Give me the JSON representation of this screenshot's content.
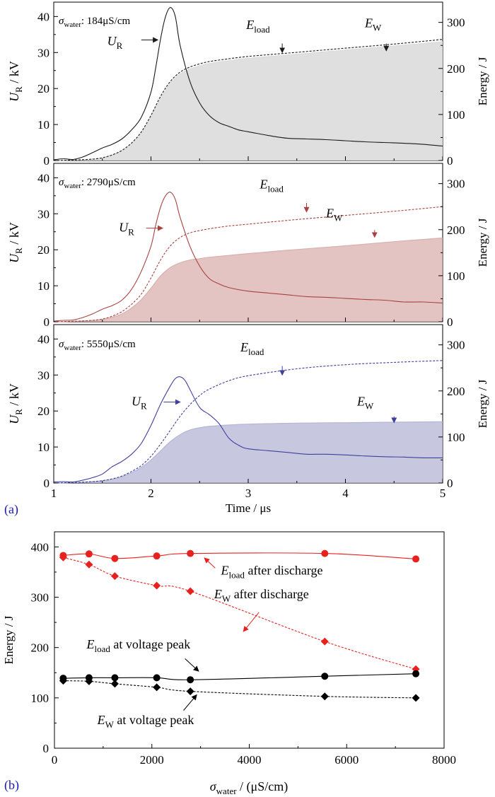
{
  "figure": {
    "panel_a_label": "(a)",
    "panel_b_label": "(b)"
  },
  "chart_data": [
    {
      "id": "a1",
      "type": "line",
      "annotation": {
        "sigma_label": "σ",
        "sigma_sub": "water",
        "sigma_value": ": 184μS/cm"
      },
      "ylabel_left": {
        "main": "U",
        "sub": "R",
        "rest": " / kV"
      },
      "ylabel_right": "Energy / J",
      "xlim": [
        1,
        5
      ],
      "ylim_left": [
        0,
        44
      ],
      "ylim_right": [
        0,
        344
      ],
      "yticks_left": [
        0,
        10,
        20,
        30,
        40
      ],
      "yticks_right": [
        0,
        100,
        200,
        300
      ],
      "colors": {
        "line": "#1a1a1a",
        "fill": "#dcdcdc",
        "fill_opacity": 0.9
      },
      "series": [
        {
          "name": "U_R",
          "axis": "left",
          "style": "solid",
          "x": [
            1.0,
            1.1,
            1.2,
            1.3,
            1.4,
            1.5,
            1.6,
            1.7,
            1.8,
            1.9,
            2.0,
            2.05,
            2.1,
            2.15,
            2.2,
            2.25,
            2.3,
            2.4,
            2.5,
            2.6,
            2.7,
            2.8,
            2.9,
            3.0,
            3.2,
            3.4,
            3.6,
            3.8,
            4.0,
            4.2,
            4.4,
            4.6,
            4.8,
            5.0
          ],
          "values": [
            0.2,
            0.5,
            0.3,
            1.0,
            2.2,
            3.5,
            4.5,
            6.0,
            8.5,
            12,
            19,
            26,
            34,
            40,
            42.5,
            40,
            32,
            22,
            16,
            12.5,
            10.5,
            9.5,
            8.5,
            8.0,
            7.0,
            6.2,
            6.0,
            5.8,
            5.5,
            5.2,
            5.0,
            4.8,
            4.5,
            4.0
          ]
        },
        {
          "name": "E_load",
          "axis": "right",
          "style": "dashed",
          "x": [
            1.0,
            1.2,
            1.4,
            1.5,
            1.6,
            1.7,
            1.8,
            1.9,
            2.0,
            2.1,
            2.2,
            2.3,
            2.4,
            2.5,
            2.6,
            2.8,
            3.0,
            3.5,
            4.0,
            4.5,
            5.0
          ],
          "values": [
            0,
            1,
            3,
            6,
            12,
            22,
            38,
            62,
            98,
            140,
            172,
            192,
            203,
            210,
            215,
            221,
            226,
            235,
            244,
            253,
            263
          ]
        },
        {
          "name": "E_W",
          "axis": "right",
          "style": "fill",
          "x": [
            1.0,
            1.2,
            1.4,
            1.5,
            1.6,
            1.7,
            1.8,
            1.9,
            2.0,
            2.1,
            2.2,
            2.3,
            2.4,
            2.5,
            2.6,
            2.8,
            3.0,
            3.5,
            4.0,
            4.5,
            5.0
          ],
          "values": [
            0,
            1,
            3,
            6,
            12,
            21,
            36,
            60,
            95,
            136,
            168,
            188,
            199,
            206,
            211,
            217,
            222,
            231,
            240,
            249,
            258
          ]
        }
      ],
      "labels": [
        {
          "main": "U",
          "sub": "R",
          "tx": 1.55,
          "ty": 32,
          "ax0": 1.9,
          "ay0": 33.5,
          "ax1": 2.07,
          "ay1": 33.5,
          "color": "#1a1a1a"
        },
        {
          "main": "E",
          "sub": "load",
          "tx": 2.98,
          "ty": 36.5,
          "ax0": 3.35,
          "ay0": 32.5,
          "ax1": 3.35,
          "ay1": 30,
          "color": "#1a1a1a"
        },
        {
          "main": "E",
          "sub": "W",
          "tx": 4.2,
          "ty": 37,
          "ax0": 4.42,
          "ay0": 32.5,
          "ax1": 4.42,
          "ay1": 30.5,
          "color": "#1a1a1a"
        }
      ]
    },
    {
      "id": "a2",
      "type": "line",
      "annotation": {
        "sigma_label": "σ",
        "sigma_sub": "water",
        "sigma_value": ": 2790μS/cm"
      },
      "ylabel_left": {
        "main": "U",
        "sub": "R",
        "rest": " / kV"
      },
      "ylabel_right": "Energy / J",
      "xlim": [
        1,
        5
      ],
      "ylim_left": [
        0,
        44
      ],
      "ylim_right": [
        0,
        344
      ],
      "yticks_left": [
        0,
        10,
        20,
        30,
        40
      ],
      "yticks_right": [
        0,
        100,
        200,
        300
      ],
      "colors": {
        "line": "#a9413f",
        "fill": "#d9b0ad",
        "fill_opacity": 0.75
      },
      "series": [
        {
          "name": "U_R",
          "axis": "left",
          "style": "solid",
          "x": [
            1.0,
            1.1,
            1.2,
            1.3,
            1.4,
            1.5,
            1.6,
            1.7,
            1.8,
            1.9,
            2.0,
            2.05,
            2.1,
            2.15,
            2.2,
            2.25,
            2.3,
            2.4,
            2.5,
            2.6,
            2.7,
            2.8,
            3.0,
            3.2,
            3.4,
            3.6,
            3.8,
            4.0,
            4.2,
            4.4,
            4.6,
            4.8,
            5.0
          ],
          "values": [
            0.2,
            0.4,
            0.5,
            1.2,
            2.2,
            3.5,
            4.5,
            6.0,
            9.0,
            14,
            21,
            27,
            32,
            35,
            36,
            34,
            29,
            21,
            15.5,
            12,
            10.5,
            9.5,
            8.5,
            8.0,
            7.5,
            7.0,
            6.8,
            6.5,
            6.2,
            6.0,
            5.5,
            5.5,
            5.2
          ]
        },
        {
          "name": "E_load",
          "axis": "right",
          "style": "dashed",
          "x": [
            1.0,
            1.2,
            1.4,
            1.5,
            1.6,
            1.7,
            1.8,
            1.9,
            2.0,
            2.1,
            2.2,
            2.3,
            2.4,
            2.5,
            2.6,
            2.8,
            3.0,
            3.5,
            4.0,
            4.5,
            5.0
          ],
          "values": [
            0,
            1,
            3,
            6,
            12,
            22,
            38,
            60,
            95,
            135,
            165,
            183,
            193,
            198,
            202,
            208,
            212,
            222,
            231,
            240,
            250
          ]
        },
        {
          "name": "E_W",
          "axis": "right",
          "style": "fill",
          "x": [
            1.0,
            1.2,
            1.4,
            1.5,
            1.6,
            1.7,
            1.8,
            1.9,
            2.0,
            2.1,
            2.2,
            2.3,
            2.4,
            2.5,
            2.6,
            2.8,
            3.0,
            3.5,
            4.0,
            4.5,
            5.0
          ],
          "values": [
            0,
            1,
            3,
            5,
            10,
            17,
            30,
            48,
            73,
            100,
            118,
            128,
            134,
            137,
            140,
            144,
            148,
            157,
            165,
            174,
            182
          ]
        }
      ],
      "labels": [
        {
          "main": "U",
          "sub": "R",
          "tx": 1.67,
          "ty": 25,
          "ax0": 1.95,
          "ay0": 26,
          "ax1": 2.12,
          "ay1": 26,
          "color": "#a9413f"
        },
        {
          "main": "E",
          "sub": "load",
          "tx": 3.12,
          "ty": 37,
          "ax0": 3.6,
          "ay0": 33,
          "ax1": 3.6,
          "ay1": 30.5,
          "color": "#a9413f"
        },
        {
          "main": "E",
          "sub": "W",
          "tx": 3.8,
          "ty": 29,
          "ax0": 4.3,
          "ay0": 25.5,
          "ax1": 4.3,
          "ay1": 23.5,
          "color": "#a9413f"
        }
      ]
    },
    {
      "id": "a3",
      "type": "line",
      "annotation": {
        "sigma_label": "σ",
        "sigma_sub": "water",
        "sigma_value": ": 5550μS/cm"
      },
      "ylabel_left": {
        "main": "U",
        "sub": "R",
        "rest": " / kV"
      },
      "ylabel_right": "Energy / J",
      "xlabel": "Time / μs",
      "xlim": [
        1,
        5
      ],
      "ylim_left": [
        0,
        44
      ],
      "ylim_right": [
        0,
        344
      ],
      "xticks": [
        1,
        2,
        3,
        4,
        5
      ],
      "yticks_left": [
        0,
        10,
        20,
        30,
        40
      ],
      "yticks_right": [
        0,
        100,
        200,
        300
      ],
      "colors": {
        "line": "#3f3f9e",
        "fill": "#b4b6d6",
        "fill_opacity": 0.75
      },
      "series": [
        {
          "name": "U_R",
          "axis": "left",
          "style": "solid",
          "x": [
            1.0,
            1.1,
            1.2,
            1.3,
            1.4,
            1.5,
            1.6,
            1.7,
            1.8,
            1.9,
            2.0,
            2.1,
            2.2,
            2.25,
            2.3,
            2.35,
            2.4,
            2.5,
            2.6,
            2.7,
            2.8,
            2.9,
            3.0,
            3.2,
            3.4,
            3.6,
            3.8,
            4.0,
            4.2,
            4.4,
            4.6,
            4.8,
            5.0
          ],
          "values": [
            0.3,
            0.4,
            0.3,
            0.8,
            1.5,
            2.5,
            4.5,
            6.0,
            8.0,
            11,
            16,
            22,
            27,
            29,
            29.5,
            28.5,
            26,
            21,
            19,
            16.5,
            12.5,
            10.5,
            9.5,
            9.0,
            8.5,
            8.0,
            8.0,
            7.8,
            7.5,
            7.3,
            7.2,
            7.0,
            7.0
          ]
        },
        {
          "name": "E_load",
          "axis": "right",
          "style": "dashed",
          "x": [
            1.0,
            1.2,
            1.4,
            1.5,
            1.6,
            1.7,
            1.8,
            1.9,
            2.0,
            2.1,
            2.2,
            2.3,
            2.4,
            2.5,
            2.6,
            2.8,
            3.0,
            3.5,
            4.0,
            4.5,
            5.0
          ],
          "values": [
            0,
            1,
            3,
            5,
            9,
            15,
            25,
            38,
            58,
            85,
            115,
            145,
            170,
            190,
            204,
            222,
            233,
            248,
            257,
            262,
            266
          ]
        },
        {
          "name": "E_W",
          "axis": "right",
          "style": "fill",
          "x": [
            1.0,
            1.2,
            1.4,
            1.5,
            1.6,
            1.7,
            1.8,
            1.9,
            2.0,
            2.1,
            2.2,
            2.3,
            2.4,
            2.5,
            2.6,
            2.8,
            3.0,
            3.5,
            4.0,
            4.5,
            5.0
          ],
          "values": [
            0,
            1,
            3,
            5,
            8,
            14,
            22,
            34,
            50,
            70,
            90,
            105,
            115,
            120,
            123,
            126,
            128,
            130,
            131,
            132,
            133
          ]
        }
      ],
      "labels": [
        {
          "main": "U",
          "sub": "R",
          "tx": 1.8,
          "ty": 21.5,
          "ax0": 2.13,
          "ay0": 22.5,
          "ax1": 2.3,
          "ay1": 22.5,
          "color": "#3f3f9e"
        },
        {
          "main": "E",
          "sub": "load",
          "tx": 2.92,
          "ty": 36.5,
          "ax0": 3.35,
          "ay0": 32.5,
          "ax1": 3.35,
          "ay1": 30,
          "color": "#3f3f9e"
        },
        {
          "main": "E",
          "sub": "W",
          "tx": 4.12,
          "ty": 21.5,
          "ax0": 4.5,
          "ay0": 18.5,
          "ax1": 4.5,
          "ay1": 16.8,
          "color": "#3f3f9e"
        }
      ]
    },
    {
      "id": "b",
      "type": "line",
      "xlabel": {
        "main": "σ",
        "sub": "water",
        "rest": " / (μS/cm)"
      },
      "ylabel": "Energy / J",
      "xlim": [
        0,
        8000
      ],
      "ylim": [
        0,
        430
      ],
      "xticks": [
        0,
        2000,
        4000,
        6000,
        8000
      ],
      "yticks": [
        0,
        100,
        200,
        300,
        400
      ],
      "series": [
        {
          "name": "E_load after discharge",
          "color": "#e8211f",
          "marker": "circle",
          "style": "solid",
          "x": [
            180,
            710,
            1240,
            2100,
            2790,
            5550,
            7420
          ],
          "values": [
            383,
            386,
            377,
            382,
            387,
            387,
            376
          ]
        },
        {
          "name": "E_W after discharge",
          "color": "#e8211f",
          "marker": "diamond",
          "style": "dashed",
          "x": [
            180,
            710,
            1240,
            2100,
            2790,
            5550,
            7420
          ],
          "values": [
            379,
            365,
            342,
            323,
            312,
            212,
            157
          ]
        },
        {
          "name": "E_load at voltage peak",
          "color": "#000000",
          "marker": "circle",
          "style": "solid",
          "x": [
            180,
            710,
            1240,
            2100,
            2790,
            5550,
            7420
          ],
          "values": [
            139,
            140,
            140,
            140,
            136,
            143,
            148
          ]
        },
        {
          "name": "E_W at voltage peak",
          "color": "#000000",
          "marker": "diamond",
          "style": "dashed",
          "x": [
            180,
            710,
            1240,
            2100,
            2790,
            5550,
            7420
          ],
          "values": [
            134,
            133,
            128,
            121,
            113,
            103,
            100
          ]
        }
      ],
      "labels": [
        {
          "main": "E",
          "sub": "load",
          "rest": " after discharge",
          "tx": 3420,
          "ty": 345,
          "ax0": 3300,
          "ay0": 358,
          "ax1": 3080,
          "ay1": 378,
          "color": "#000000"
        },
        {
          "main": "E",
          "sub": "W",
          "rest": " after discharge",
          "tx": 3280,
          "ty": 298,
          "ax0": 4200,
          "ay0": 270,
          "ax1": 3880,
          "ay1": 232,
          "color": "#000000"
        },
        {
          "main": "E",
          "sub": "load",
          "rest": " at voltage peak",
          "tx": 660,
          "ty": 198,
          "ax0": 2680,
          "ay0": 178,
          "ax1": 2960,
          "ay1": 153,
          "color": "#000000"
        },
        {
          "main": "E",
          "sub": "W",
          "rest": " at voltage peak",
          "tx": 880,
          "ty": 48,
          "ax0": 2650,
          "ay0": 75,
          "ax1": 2920,
          "ay1": 106,
          "color": "#000000"
        }
      ]
    }
  ]
}
